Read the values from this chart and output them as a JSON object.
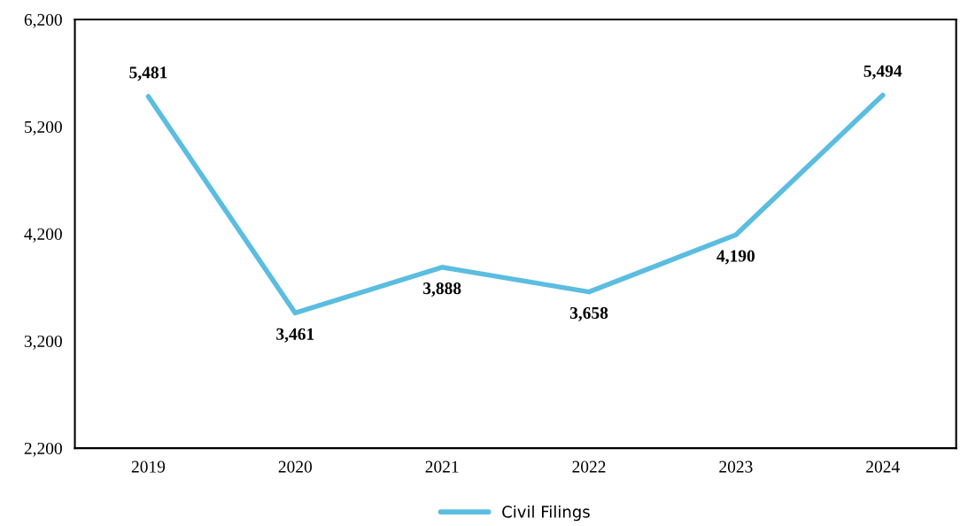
{
  "chart_data": {
    "type": "line",
    "categories": [
      "2019",
      "2020",
      "2021",
      "2022",
      "2023",
      "2024"
    ],
    "series": [
      {
        "name": "Civil Filings",
        "color": "#5bbde0",
        "values": [
          5481,
          3461,
          3888,
          3658,
          4190,
          5494
        ],
        "value_labels": [
          "5,481",
          "3,461",
          "3,888",
          "3,658",
          "4,190",
          "5,494"
        ]
      }
    ],
    "ylim": [
      2200,
      6200
    ],
    "yticks": [
      {
        "value": 2200,
        "label": "2,200"
      },
      {
        "value": 3200,
        "label": "3,200"
      },
      {
        "value": 4200,
        "label": "4,200"
      },
      {
        "value": 5200,
        "label": "5,200"
      },
      {
        "value": 6200,
        "label": "6,200"
      }
    ],
    "legend": "bottom",
    "grid": false,
    "marker": "none",
    "line_style": "solid"
  }
}
